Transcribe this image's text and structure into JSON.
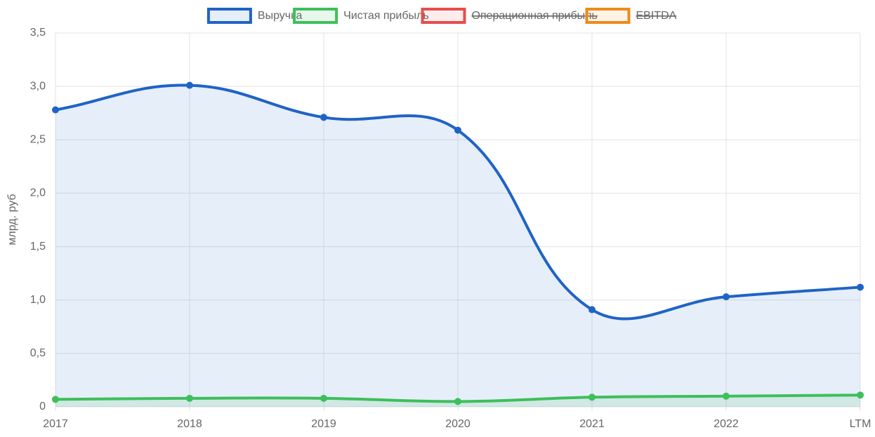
{
  "chart_data": {
    "type": "line",
    "y_label": "млрд. руб",
    "categories": [
      "2017",
      "2018",
      "2019",
      "2020",
      "2021",
      "2022",
      "LTM"
    ],
    "series": [
      {
        "name": "Выручка",
        "color": "#1f63c6",
        "fill": "rgba(31,99,198,0.11)",
        "hidden": false,
        "values": [
          2.78,
          3.01,
          2.71,
          2.59,
          0.91,
          1.03,
          1.12
        ]
      },
      {
        "name": "Чистая прибыль",
        "color": "#3dbf5a",
        "fill": "rgba(61,191,90,0.12)",
        "hidden": false,
        "values": [
          0.07,
          0.08,
          0.08,
          0.05,
          0.09,
          0.1,
          0.11
        ]
      },
      {
        "name": "Операционная прибыль",
        "color": "#e84c4c",
        "fill": "rgba(232,76,76,0.1)",
        "hidden": true,
        "values": [
          null,
          null,
          null,
          null,
          null,
          null,
          null
        ]
      },
      {
        "name": "EBITDA",
        "color": "#ee8a1a",
        "fill": "rgba(238,138,26,0.1)",
        "hidden": true,
        "values": [
          null,
          null,
          null,
          null,
          null,
          null,
          null
        ]
      }
    ],
    "ylim": [
      0,
      3.5
    ],
    "yticks": [
      0,
      {
        "value": 0.5,
        "label": "0,5"
      },
      {
        "value": 1,
        "label": "1,0"
      },
      {
        "value": 1.5,
        "label": "1,5"
      },
      {
        "value": 2,
        "label": "2,0"
      },
      {
        "value": 2.5,
        "label": "2,5"
      },
      {
        "value": 3,
        "label": "3,0"
      },
      {
        "value": 3.5,
        "label": "3,5"
      }
    ],
    "grid": true,
    "legend": "top"
  }
}
